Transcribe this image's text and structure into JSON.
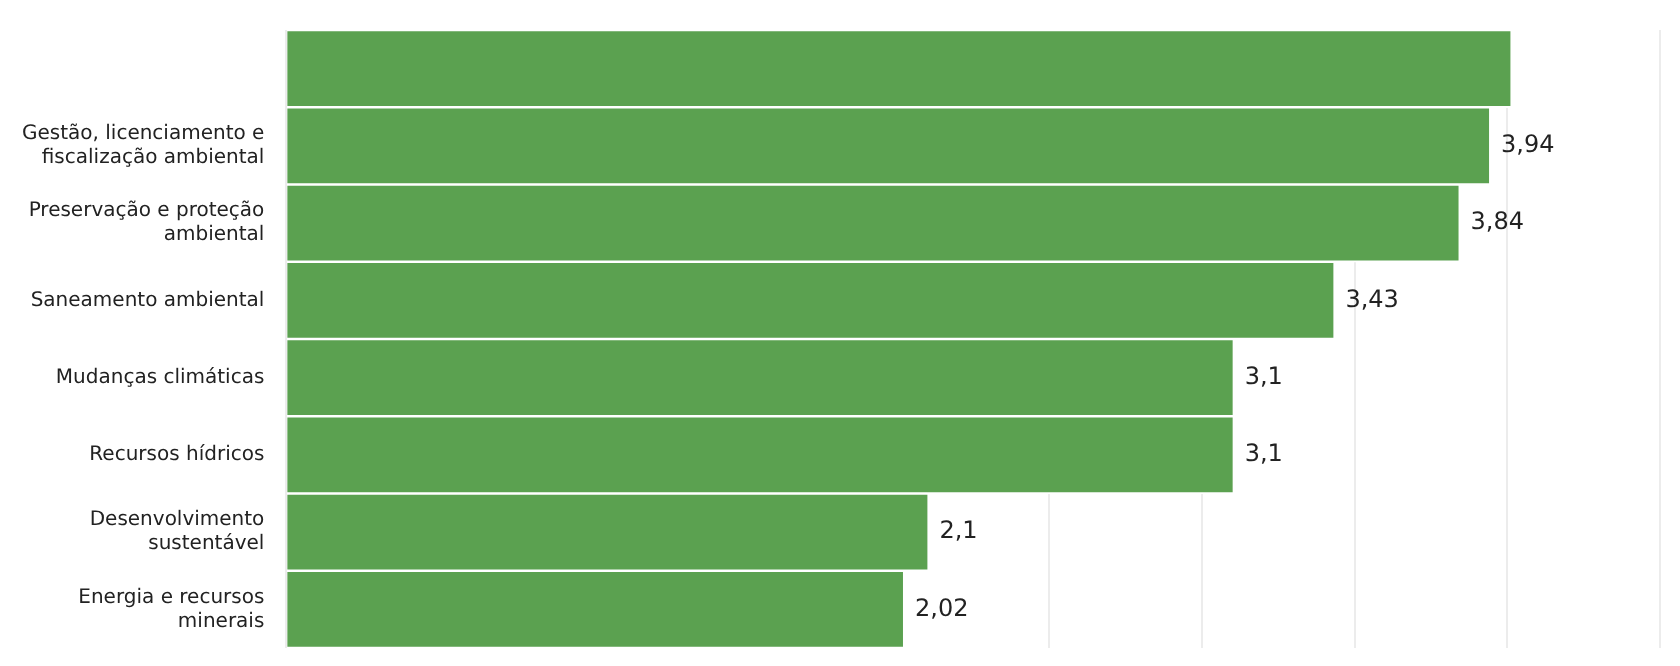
{
  "chart_data": {
    "type": "bar",
    "orientation": "horizontal",
    "categories": [
      null,
      "Gestão, licenciamento e fiscalização ambiental",
      "Preservação e proteção ambiental",
      "Saneamento ambiental",
      "Mudanças climáticas",
      "Recursos hídricos",
      "Desenvolvimento sustentável",
      "Energia e recursos minerais"
    ],
    "values": [
      4.01,
      3.94,
      3.84,
      3.43,
      3.1,
      3.1,
      2.1,
      2.02
    ],
    "value_labels": [
      null,
      "3,94",
      "3,84",
      "3,43",
      "3,1",
      "3,1",
      "2,1",
      "2,02"
    ],
    "color": "#5ba150",
    "grid": "x",
    "legend": false,
    "tick_labels": "y"
  }
}
